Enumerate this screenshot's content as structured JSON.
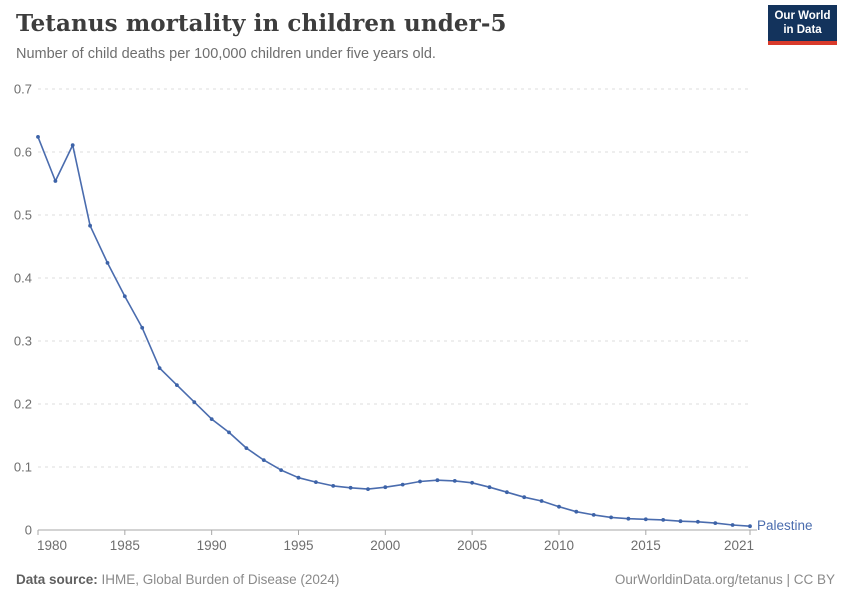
{
  "header": {
    "title": "Tetanus mortality in children under-5",
    "subtitle": "Number of child deaths per 100,000 children under five years old."
  },
  "logo": {
    "line1": "Our World",
    "line2": "in Data",
    "bg_color": "#13335c",
    "accent_color": "#d93a2b"
  },
  "chart_data": {
    "type": "line",
    "title": "Tetanus mortality in children under-5",
    "xlabel": "",
    "ylabel": "",
    "xlim": [
      1980,
      2021
    ],
    "ylim": [
      0,
      0.7
    ],
    "xticks": [
      1980,
      1985,
      1990,
      1995,
      2000,
      2005,
      2010,
      2015,
      2021
    ],
    "yticks": [
      0,
      0.1,
      0.2,
      0.3,
      0.4,
      0.5,
      0.6,
      0.7
    ],
    "grid": "horizontal-dashed",
    "legend_position": "end-of-line",
    "series": [
      {
        "name": "Palestine",
        "color": "#4a6cae",
        "marker_color": "#3d63a8",
        "x": [
          1980,
          1981,
          1982,
          1983,
          1984,
          1985,
          1986,
          1987,
          1988,
          1989,
          1990,
          1991,
          1992,
          1993,
          1994,
          1995,
          1996,
          1997,
          1998,
          1999,
          2000,
          2001,
          2002,
          2003,
          2004,
          2005,
          2006,
          2007,
          2008,
          2009,
          2010,
          2011,
          2012,
          2013,
          2014,
          2015,
          2016,
          2017,
          2018,
          2019,
          2020,
          2021
        ],
        "values": [
          0.624,
          0.554,
          0.611,
          0.483,
          0.424,
          0.371,
          0.321,
          0.257,
          0.23,
          0.203,
          0.176,
          0.155,
          0.13,
          0.111,
          0.095,
          0.083,
          0.076,
          0.07,
          0.067,
          0.065,
          0.068,
          0.072,
          0.077,
          0.079,
          0.078,
          0.075,
          0.068,
          0.06,
          0.052,
          0.046,
          0.037,
          0.029,
          0.024,
          0.02,
          0.018,
          0.017,
          0.016,
          0.014,
          0.013,
          0.011,
          0.008,
          0.006
        ]
      }
    ],
    "colors": {
      "gridline": "#dddddd",
      "axis_line": "#a7a7a7",
      "tick_label": "#6e6e6e"
    }
  },
  "footer": {
    "source_label": "Data source:",
    "source_value": " IHME, Global Burden of Disease (2024)",
    "right_text": "OurWorldinData.org/tetanus | CC BY"
  }
}
